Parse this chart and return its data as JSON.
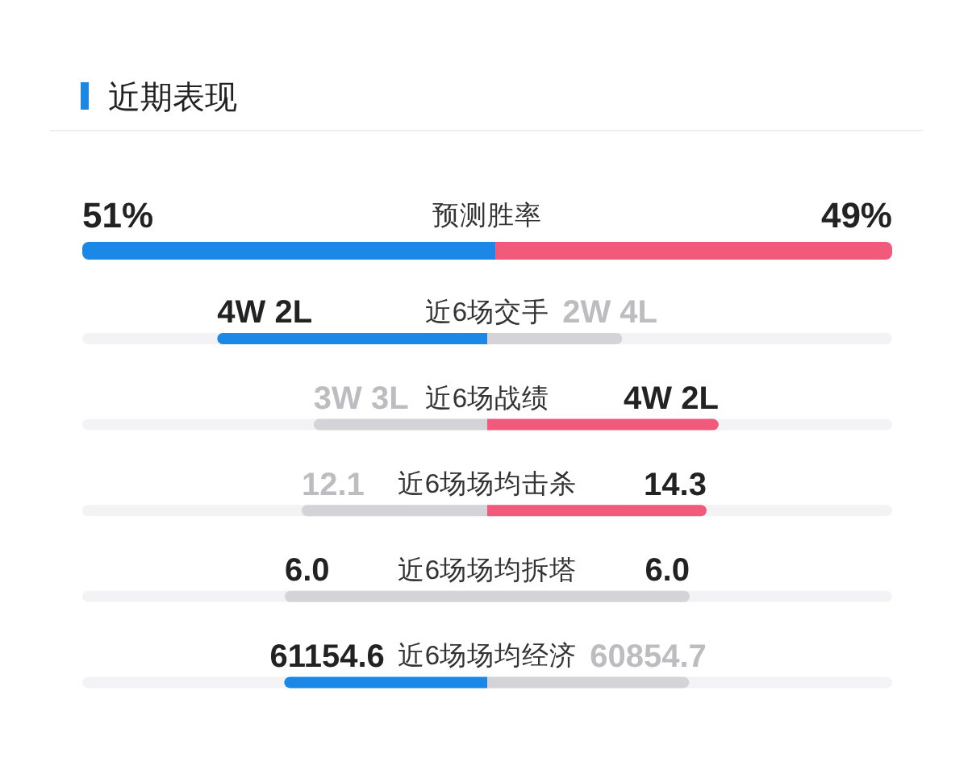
{
  "chart_data": [
    {
      "type": "bar",
      "title": "近期表现",
      "orientation": "horizontal",
      "stacked": true,
      "categories": [
        "预测胜率"
      ],
      "series": [
        {
          "color": "#1b87e6",
          "values": [
            51
          ],
          "value_labels": [
            "51%"
          ]
        },
        {
          "color": "#f25a7b",
          "values": [
            49
          ],
          "value_labels": [
            "49%"
          ]
        }
      ],
      "tick_labels": "y"
    },
    {
      "type": "bar",
      "orientation": "horizontal",
      "stacked": true,
      "categories": [
        "近6场交手"
      ],
      "series": [
        {
          "color": "#1b87e6",
          "values": [
            4
          ],
          "value_labels": [
            "4W 2L"
          ]
        },
        {
          "color": "#d4d4d8",
          "values": [
            2
          ],
          "value_labels": [
            "2W 4L"
          ]
        }
      ],
      "tick_labels": "y"
    },
    {
      "type": "bar",
      "orientation": "horizontal",
      "stacked": true,
      "categories": [
        "近6场战绩"
      ],
      "series": [
        {
          "color": "#d4d4d8",
          "values": [
            3
          ],
          "value_labels": [
            "3W 3L"
          ]
        },
        {
          "color": "#f25a7b",
          "values": [
            4
          ],
          "value_labels": [
            "4W 2L"
          ]
        }
      ],
      "tick_labels": "y"
    },
    {
      "type": "bar",
      "orientation": "horizontal",
      "stacked": true,
      "categories": [
        "近6场场均击杀"
      ],
      "series": [
        {
          "color": "#d4d4d8",
          "values": [
            12.1
          ],
          "value_labels": [
            "12.1"
          ]
        },
        {
          "color": "#f25a7b",
          "values": [
            14.3
          ],
          "value_labels": [
            "14.3"
          ]
        }
      ],
      "tick_labels": "y"
    },
    {
      "type": "bar",
      "orientation": "horizontal",
      "stacked": true,
      "categories": [
        "近6场场均拆塔"
      ],
      "series": [
        {
          "color": "#d4d4d8",
          "values": [
            6.0
          ],
          "value_labels": [
            "6.0"
          ]
        },
        {
          "color": "#d4d4d8",
          "values": [
            6.0
          ],
          "value_labels": [
            "6.0"
          ]
        }
      ],
      "tick_labels": "y"
    },
    {
      "type": "bar",
      "orientation": "horizontal",
      "stacked": true,
      "categories": [
        "近6场场均经济"
      ],
      "series": [
        {
          "color": "#1b87e6",
          "values": [
            61154.6
          ],
          "value_labels": [
            "61154.6"
          ]
        },
        {
          "color": "#d4d4d8",
          "values": [
            60854.7
          ],
          "value_labels": [
            "60854.7"
          ]
        }
      ],
      "tick_labels": "y"
    }
  ]
}
